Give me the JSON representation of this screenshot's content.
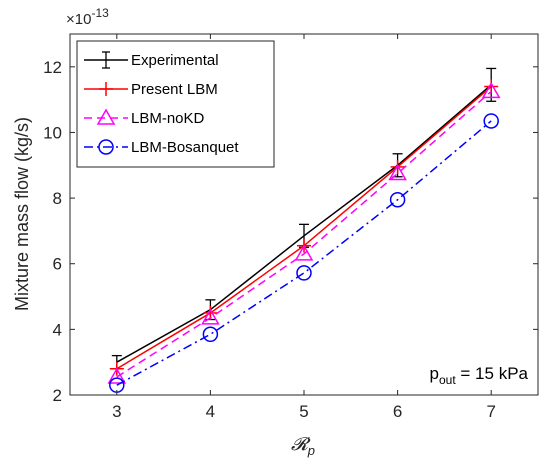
{
  "chart_data": {
    "type": "line",
    "title": "",
    "xlabel": "𝓡",
    "xlabel_sub": "p",
    "ylabel": "Mixture mass flow (kg/s)",
    "y_exponent_base": "×10",
    "y_exponent_power": "-13",
    "x": [
      3,
      4,
      5,
      6,
      7
    ],
    "x_ticks": [
      "3",
      "4",
      "5",
      "6",
      "7"
    ],
    "y_ticks": [
      "2",
      "4",
      "6",
      "8",
      "10",
      "12"
    ],
    "xlim": [
      2.5,
      7.5
    ],
    "ylim": [
      2,
      13
    ],
    "grid": false,
    "legend_position": "top-left",
    "annotation": {
      "p": "p",
      "sub": "out",
      "rest": " = 15 kPa"
    },
    "series": [
      {
        "name": "Experimental",
        "values": [
          3.0,
          4.6,
          6.85,
          9.0,
          11.45
        ],
        "errors": [
          0.2,
          0.3,
          0.35,
          0.35,
          0.5
        ],
        "color": "#000000",
        "dash": "solid",
        "marker": "errorbar"
      },
      {
        "name": "Present LBM",
        "values": [
          2.8,
          4.5,
          6.55,
          8.95,
          11.4
        ],
        "color": "#ff0000",
        "dash": "solid",
        "marker": "plus"
      },
      {
        "name": "LBM-noKD",
        "values": [
          2.55,
          4.35,
          6.3,
          8.75,
          11.25
        ],
        "color": "#ff00ff",
        "dash": "dashed",
        "marker": "triangle"
      },
      {
        "name": "LBM-Bosanquet",
        "values": [
          2.3,
          3.85,
          5.72,
          7.95,
          10.35
        ],
        "color": "#0000ff",
        "dash": "dashdot",
        "marker": "circle"
      }
    ]
  }
}
